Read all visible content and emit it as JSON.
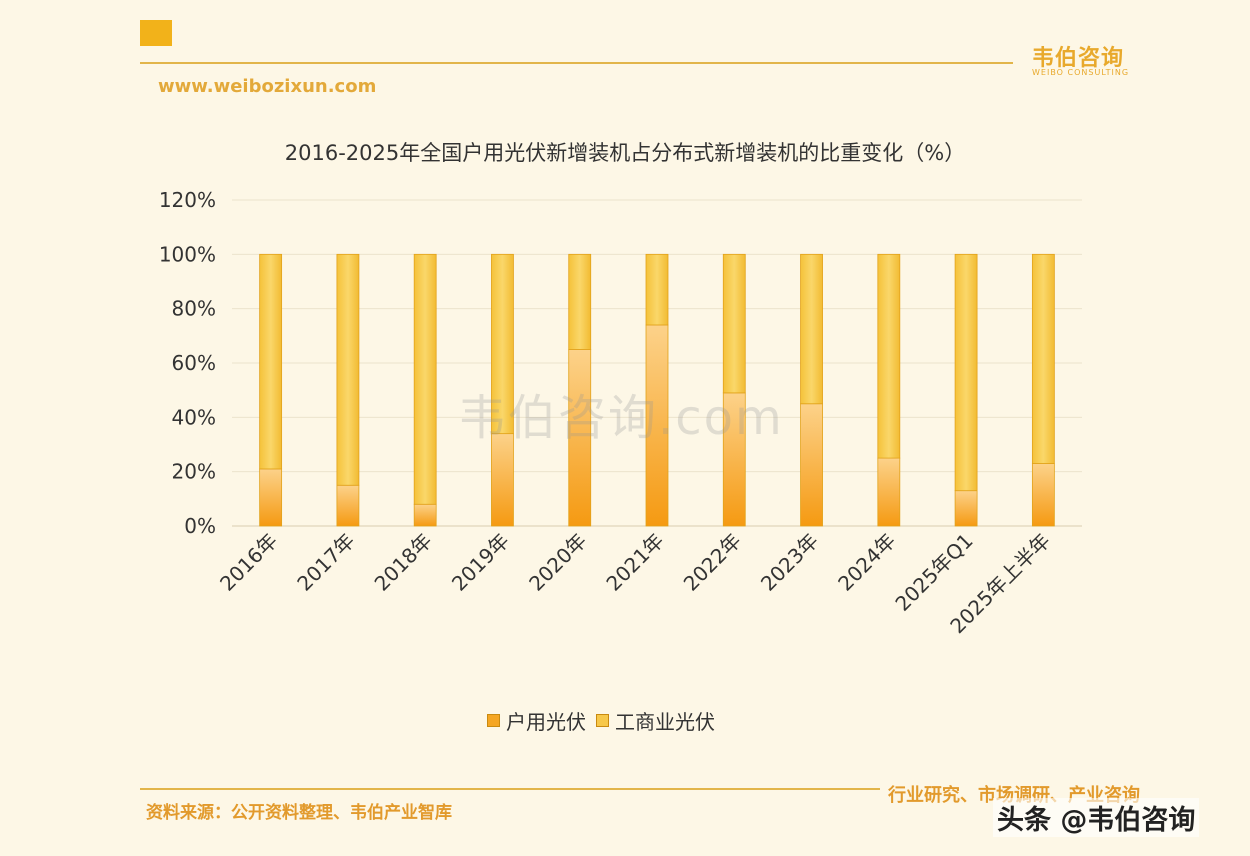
{
  "header": {
    "brand_name": "韦伯咨询",
    "brand_sub": "WEIBO CONSULTING",
    "website": "www.weibozixun.com"
  },
  "watermark": "韦伯咨询.com",
  "footer": {
    "source": "资料来源：公开资料整理、韦伯产业智库",
    "tagline": "行业研究、市场调研、产业咨询",
    "platform": "头条 @韦伯咨询"
  },
  "colors": {
    "household": "#f5a623",
    "commercial": "#f7c84a"
  },
  "chart_data": {
    "type": "bar",
    "stacked": true,
    "title": "2016-2025年全国户用光伏新增装机占分布式新增装机的比重变化（%）",
    "categories": [
      "2016年",
      "2017年",
      "2018年",
      "2019年",
      "2020年",
      "2021年",
      "2022年",
      "2023年",
      "2024年",
      "2025年Q1",
      "2025年上半年"
    ],
    "series": [
      {
        "name": "户用光伏",
        "values": [
          21,
          15,
          8,
          34,
          65,
          74,
          49,
          45,
          25,
          13,
          23
        ]
      },
      {
        "name": "工商业光伏",
        "values": [
          79,
          85,
          92,
          66,
          35,
          26,
          51,
          55,
          75,
          87,
          77
        ]
      }
    ],
    "ylim": [
      0,
      120
    ],
    "yticks": [
      "0%",
      "20%",
      "40%",
      "60%",
      "80%",
      "100%",
      "120%"
    ],
    "grid": true,
    "legend": "bottom"
  }
}
